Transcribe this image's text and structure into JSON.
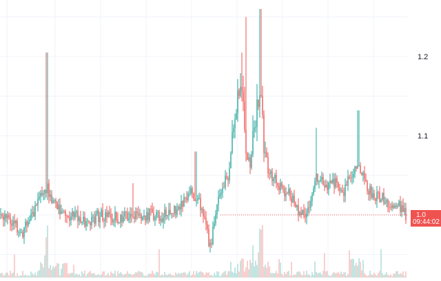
{
  "chart_data": {
    "type": "candlestick",
    "y_ticks": [
      1.2,
      1.1,
      1.0
    ],
    "y_tick_labels": [
      "1.2",
      "1.1",
      "1.0"
    ],
    "ylim": [
      0.94,
      1.27
    ],
    "grid": true,
    "last_price": 1.0,
    "last_price_label": "1.0",
    "countdown_label": "09:44:02",
    "colors": {
      "up": "#26a69a",
      "down": "#ef5350",
      "up_volume": "#b2dfdb",
      "down_volume": "#f7c4c3",
      "grid": "#f0f3fa",
      "last_price_line": "#ef5350",
      "background": "#ffffff"
    },
    "anchors": [
      [
        0,
        1.0
      ],
      [
        10,
        0.998
      ],
      [
        20,
        0.99
      ],
      [
        30,
        0.972
      ],
      [
        40,
        0.992
      ],
      [
        52,
        1.01
      ],
      [
        58,
        1.02
      ],
      [
        63,
        1.025
      ],
      [
        67,
        1.035
      ],
      [
        72,
        1.02
      ],
      [
        85,
        1.005
      ],
      [
        100,
        1.0
      ],
      [
        115,
        0.995
      ],
      [
        130,
        0.992
      ],
      [
        145,
        1.0
      ],
      [
        160,
        0.998
      ],
      [
        175,
        0.995
      ],
      [
        190,
        1.002
      ],
      [
        205,
        1.0
      ],
      [
        220,
        1.002
      ],
      [
        235,
        0.998
      ],
      [
        250,
        1.005
      ],
      [
        262,
        1.01
      ],
      [
        270,
        1.02
      ],
      [
        278,
        1.03
      ],
      [
        285,
        1.02
      ],
      [
        292,
        1.005
      ],
      [
        298,
        0.985
      ],
      [
        303,
        0.958
      ],
      [
        308,
        0.978
      ],
      [
        315,
        1.02
      ],
      [
        322,
        1.035
      ],
      [
        330,
        1.05
      ],
      [
        338,
        1.1
      ],
      [
        344,
        1.145
      ],
      [
        350,
        1.16
      ],
      [
        356,
        1.085
      ],
      [
        362,
        1.055
      ],
      [
        367,
        1.11
      ],
      [
        372,
        1.14
      ],
      [
        377,
        1.16
      ],
      [
        382,
        1.095
      ],
      [
        388,
        1.06
      ],
      [
        395,
        1.045
      ],
      [
        403,
        1.04
      ],
      [
        412,
        1.03
      ],
      [
        420,
        1.025
      ],
      [
        430,
        1.01
      ],
      [
        438,
        1.0
      ],
      [
        448,
        1.005
      ],
      [
        458,
        1.045
      ],
      [
        466,
        1.04
      ],
      [
        475,
        1.035
      ],
      [
        485,
        1.04
      ],
      [
        495,
        1.025
      ],
      [
        505,
        1.045
      ],
      [
        512,
        1.058
      ],
      [
        518,
        1.062
      ],
      [
        526,
        1.052
      ],
      [
        535,
        1.03
      ],
      [
        545,
        1.025
      ],
      [
        555,
        1.02
      ],
      [
        565,
        1.015
      ],
      [
        575,
        1.012
      ],
      [
        582,
        1.01
      ],
      [
        588,
        1.0
      ]
    ],
    "spikes": [
      {
        "x": 67,
        "high": 1.205
      },
      {
        "x": 66,
        "high": 1.135
      },
      {
        "x": 356,
        "high": 1.25
      },
      {
        "x": 377,
        "high": 1.26
      },
      {
        "x": 350,
        "high": 1.205
      },
      {
        "x": 519,
        "high": 1.132
      },
      {
        "x": 458,
        "high": 1.11
      },
      {
        "x": 192,
        "high": 1.04
      },
      {
        "x": 283,
        "high": 1.08
      }
    ]
  }
}
